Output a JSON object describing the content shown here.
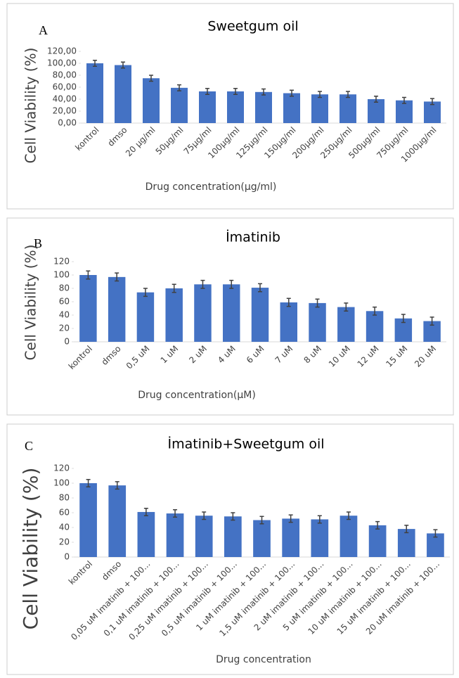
{
  "chart_data": [
    {
      "type": "bar",
      "panel_label": "A",
      "title": "Sweetgum oil",
      "x_label": "Drug concentration(µg/ml)",
      "y_label": "Cell Viability (%)",
      "categories": [
        "kontrol",
        "dmso",
        "20 µg/ml",
        "50µg/ml",
        "75µg/ml",
        "100µg/ml",
        "125µg/ml",
        "150µg/ml",
        "200µg/ml",
        "250µg/ml",
        "500µg/ml",
        "750µg/ml",
        "1000µg/ml"
      ],
      "values": [
        100,
        97,
        75,
        59,
        53,
        53,
        52,
        50,
        48,
        48,
        40,
        38,
        36
      ],
      "errors": [
        5,
        5,
        5,
        5,
        5,
        5,
        5,
        5,
        5,
        5,
        5,
        5,
        5
      ],
      "color": "#4472c4",
      "ylim": [
        0,
        120
      ],
      "yticks": [
        {
          "value": 0,
          "label": "0,00"
        },
        {
          "value": 20,
          "label": "20,00"
        },
        {
          "value": 40,
          "label": "40,00"
        },
        {
          "value": 60,
          "label": "60,00"
        },
        {
          "value": 80,
          "label": "80,00"
        },
        {
          "value": 100,
          "label": "100,00"
        },
        {
          "value": 120,
          "label": "120,00"
        }
      ]
    },
    {
      "type": "bar",
      "panel_label": "B",
      "title": "İmatinib",
      "x_label": "Drug concentration(µM)",
      "y_label": "Cell Viability (%)",
      "categories": [
        "kontrol",
        "dmso",
        "0,5 uM",
        "1 uM",
        "2 uM",
        "4 uM",
        "6 uM",
        "7 uM",
        "8 uM",
        "10 uM",
        "12 uM",
        "15 uM",
        "20 uM"
      ],
      "values": [
        100,
        97,
        74,
        80,
        86,
        86,
        81,
        59,
        58,
        52,
        46,
        35,
        31
      ],
      "errors": [
        6,
        6,
        6,
        6,
        6,
        6,
        6,
        6,
        6,
        6,
        6,
        6,
        6
      ],
      "color": "#4472c4",
      "ylim": [
        0,
        120
      ],
      "yticks": [
        0,
        20,
        40,
        60,
        80,
        100,
        120
      ]
    },
    {
      "type": "bar",
      "panel_label": "C",
      "title": "İmatinib+Sweetgum oil",
      "x_label": "Drug concentration",
      "y_label": "Cell Viability (%)",
      "categories": [
        "kontrol",
        "dmso",
        "0,05 uM imatinib + 100...",
        "0,1 uM imatinib + 100...",
        "0,25 uM imatinib + 100...",
        "0,5 uM imatinib + 100...",
        "1 uM imatinib + 100...",
        "1,5 uM imatinib + 100...",
        "2 uM imatinib + 100...",
        "5 uM imatinib + 100...",
        "10 uM imatinib + 100...",
        "15 uM imatinib + 100...",
        "20 uM imatinib + 100..."
      ],
      "values": [
        100,
        97,
        61,
        59,
        56,
        55,
        50,
        52,
        51,
        56,
        43,
        38,
        32
      ],
      "errors": [
        5,
        5,
        5,
        5,
        5,
        5,
        5,
        5,
        5,
        5,
        5,
        5,
        5
      ],
      "color": "#4472c4",
      "ylim": [
        0,
        120
      ],
      "yticks": [
        0,
        20,
        40,
        60,
        80,
        100,
        120
      ]
    }
  ]
}
